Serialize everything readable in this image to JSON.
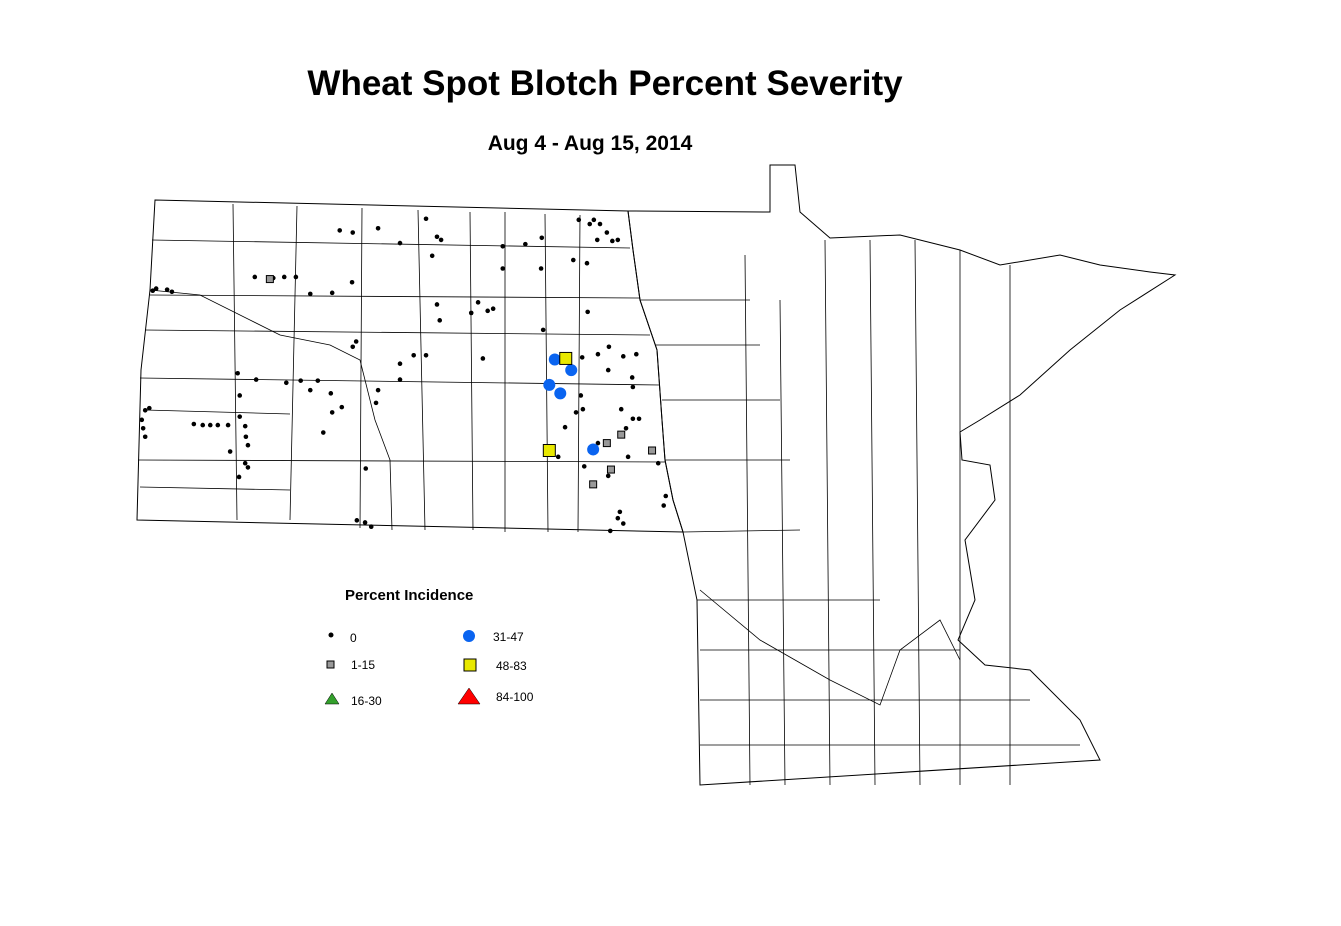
{
  "title": "Wheat Spot Blotch Percent Severity",
  "subtitle": "Aug 4 - Aug 15, 2014",
  "legend": {
    "title": "Percent Incidence",
    "classes": [
      {
        "label": "0",
        "symbol": "dot",
        "color": "#000000"
      },
      {
        "label": "1-15",
        "symbol": "square",
        "color": "#999999"
      },
      {
        "label": "16-30",
        "symbol": "triangle",
        "color": "#33a02c"
      },
      {
        "label": "31-47",
        "symbol": "circle",
        "color": "#0a64f0"
      },
      {
        "label": "48-83",
        "symbol": "square",
        "color": "#e8e800"
      },
      {
        "label": "84-100",
        "symbol": "triangle",
        "color": "#ff0000"
      }
    ]
  },
  "map": {
    "region": "North Dakota and Minnesota counties",
    "points": {
      "0": [
        [
          -104.01,
          48.19
        ],
        [
          -103.96,
          48.21
        ],
        [
          -103.8,
          48.2
        ],
        [
          -103.73,
          48.18
        ],
        [
          -102.52,
          48.32
        ],
        [
          -102.25,
          48.31
        ],
        [
          -102.09,
          48.32
        ],
        [
          -101.92,
          48.32
        ],
        [
          -101.71,
          48.16
        ],
        [
          -101.39,
          48.17
        ],
        [
          -101.1,
          48.27
        ],
        [
          -101.28,
          48.76
        ],
        [
          -101.09,
          48.74
        ],
        [
          -100.72,
          48.78
        ],
        [
          -100.4,
          48.64
        ],
        [
          -100.02,
          48.87
        ],
        [
          -99.93,
          48.52
        ],
        [
          -99.86,
          48.7
        ],
        [
          -99.8,
          48.67
        ],
        [
          -99.86,
          48.06
        ],
        [
          -99.82,
          47.91
        ],
        [
          -99.36,
          47.98
        ],
        [
          -99.26,
          48.08
        ],
        [
          -99.12,
          48.0
        ],
        [
          -99.04,
          48.02
        ],
        [
          -98.9,
          48.61
        ],
        [
          -98.9,
          48.4
        ],
        [
          -98.57,
          48.63
        ],
        [
          -98.33,
          48.69
        ],
        [
          -98.34,
          48.4
        ],
        [
          -97.79,
          48.86
        ],
        [
          -97.63,
          48.82
        ],
        [
          -97.48,
          48.82
        ],
        [
          -97.38,
          48.74
        ],
        [
          -97.22,
          48.67
        ],
        [
          -97.52,
          48.67
        ],
        [
          -97.3,
          48.66
        ],
        [
          -97.87,
          48.48
        ],
        [
          -97.67,
          48.45
        ],
        [
          -97.66,
          47.99
        ],
        [
          -98.31,
          47.82
        ],
        [
          -101.04,
          47.71
        ],
        [
          -101.09,
          47.66
        ],
        [
          -100.4,
          47.5
        ],
        [
          -100.2,
          47.58
        ],
        [
          -100.02,
          47.58
        ],
        [
          -100.4,
          47.35
        ],
        [
          -99.19,
          47.55
        ],
        [
          -102.77,
          47.41
        ],
        [
          -102.5,
          47.35
        ],
        [
          -102.74,
          47.2
        ],
        [
          -102.06,
          47.32
        ],
        [
          -101.85,
          47.34
        ],
        [
          -101.6,
          47.34
        ],
        [
          -101.41,
          47.22
        ],
        [
          -101.71,
          47.25
        ],
        [
          -101.25,
          47.09
        ],
        [
          -101.39,
          47.04
        ],
        [
          -100.72,
          47.25
        ],
        [
          -100.75,
          47.13
        ],
        [
          -101.52,
          46.85
        ],
        [
          -102.74,
          47.0
        ],
        [
          -103.41,
          46.93
        ],
        [
          -103.28,
          46.92
        ],
        [
          -103.17,
          46.92
        ],
        [
          -103.06,
          46.92
        ],
        [
          -102.91,
          46.92
        ],
        [
          -102.66,
          46.91
        ],
        [
          -102.65,
          46.81
        ],
        [
          -102.62,
          46.73
        ],
        [
          -102.88,
          46.67
        ],
        [
          -102.66,
          46.56
        ],
        [
          -102.62,
          46.52
        ],
        [
          -102.75,
          46.43
        ],
        [
          -104.12,
          47.06
        ],
        [
          -104.06,
          47.08
        ],
        [
          -104.17,
          46.97
        ],
        [
          -104.15,
          46.89
        ],
        [
          -104.12,
          46.81
        ],
        [
          -100.9,
          46.51
        ],
        [
          -101.03,
          46.02
        ],
        [
          -100.91,
          46.0
        ],
        [
          -100.82,
          45.96
        ],
        [
          -97.74,
          47.56
        ],
        [
          -97.51,
          47.59
        ],
        [
          -97.35,
          47.66
        ],
        [
          -97.14,
          47.57
        ],
        [
          -96.95,
          47.59
        ],
        [
          -97.36,
          47.44
        ],
        [
          -97.01,
          47.37
        ],
        [
          -97.0,
          47.28
        ],
        [
          -97.76,
          47.2
        ],
        [
          -97.73,
          47.07
        ],
        [
          -97.83,
          47.04
        ],
        [
          -97.99,
          46.9
        ],
        [
          -97.17,
          47.07
        ],
        [
          -97.0,
          46.98
        ],
        [
          -97.1,
          46.89
        ],
        [
          -96.91,
          46.98
        ],
        [
          -97.07,
          46.62
        ],
        [
          -97.51,
          46.75
        ],
        [
          -98.09,
          46.62
        ],
        [
          -97.71,
          46.53
        ],
        [
          -97.36,
          46.44
        ],
        [
          -96.63,
          46.56
        ],
        [
          -96.52,
          46.25
        ],
        [
          -96.55,
          46.16
        ],
        [
          -97.19,
          46.1
        ],
        [
          -97.22,
          46.04
        ],
        [
          -97.14,
          45.99
        ],
        [
          -97.33,
          45.92
        ],
        [
          -97.57,
          48.86
        ]
      ],
      "1-15": [
        [
          -97.38,
          46.75
        ],
        [
          -97.17,
          46.83
        ],
        [
          -96.72,
          46.68
        ],
        [
          -97.32,
          46.5
        ],
        [
          -97.58,
          46.36
        ],
        [
          -102.3,
          48.3
        ]
      ],
      "16-30": [],
      "31-47": [
        [
          -98.14,
          47.54
        ],
        [
          -97.9,
          47.44
        ],
        [
          -98.22,
          47.3
        ],
        [
          -98.06,
          47.22
        ],
        [
          -97.58,
          46.69
        ]
      ],
      "48-83": [
        [
          -97.98,
          47.55
        ],
        [
          -98.22,
          46.68
        ]
      ],
      "84-100": []
    }
  }
}
